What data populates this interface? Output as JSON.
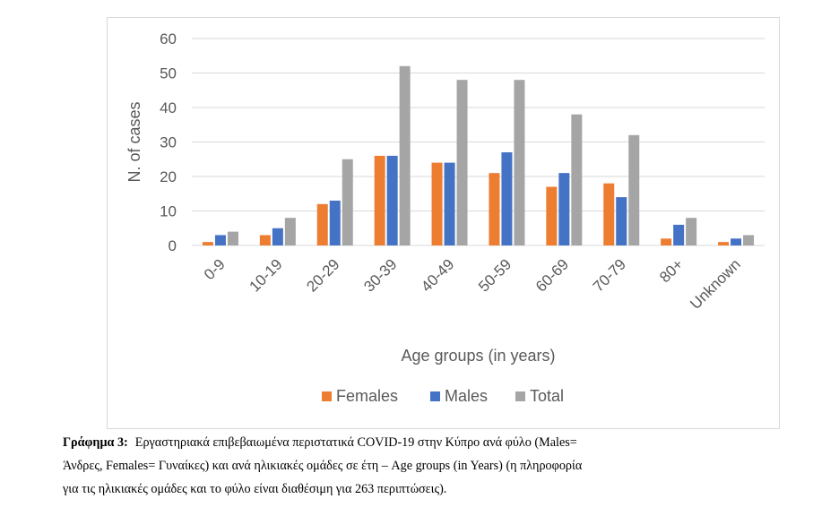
{
  "chart_data": {
    "type": "bar",
    "title": "",
    "xlabel": "Age groups (in years)",
    "ylabel": "N. of cases",
    "ylim": [
      0,
      60
    ],
    "yticks": [
      0,
      10,
      20,
      30,
      40,
      50,
      60
    ],
    "grid": true,
    "legend_position": "bottom",
    "categories": [
      "0-9",
      "10-19",
      "20-29",
      "30-39",
      "40-49",
      "50-59",
      "60-69",
      "70-79",
      "80+",
      "Unknown"
    ],
    "series": [
      {
        "name": "Females",
        "color": "#ED7D31",
        "values": [
          1,
          3,
          12,
          26,
          24,
          21,
          17,
          18,
          2,
          1
        ]
      },
      {
        "name": "Males",
        "color": "#4472C4",
        "values": [
          3,
          5,
          13,
          26,
          24,
          27,
          21,
          14,
          6,
          2
        ]
      },
      {
        "name": "Total",
        "color": "#A5A5A5",
        "values": [
          4,
          8,
          25,
          52,
          48,
          48,
          38,
          32,
          8,
          3
        ]
      }
    ]
  },
  "caption": {
    "label": "Γράφημα 3:",
    "line1": "Εργαστηριακά επιβεβαιωμένα περιστατικά COVID-19 στην Κύπρο ανά φύλο (Males=",
    "line2": "Άνδρες, Females= Γυναίκες) και ανά ηλικιακές ομάδες σε έτη – Age groups (in Years) (η πληροφορία",
    "line3": "για τις ηλικιακές ομάδες και το φύλο είναι διαθέσιμη για 263 περιπτώσεις)."
  }
}
